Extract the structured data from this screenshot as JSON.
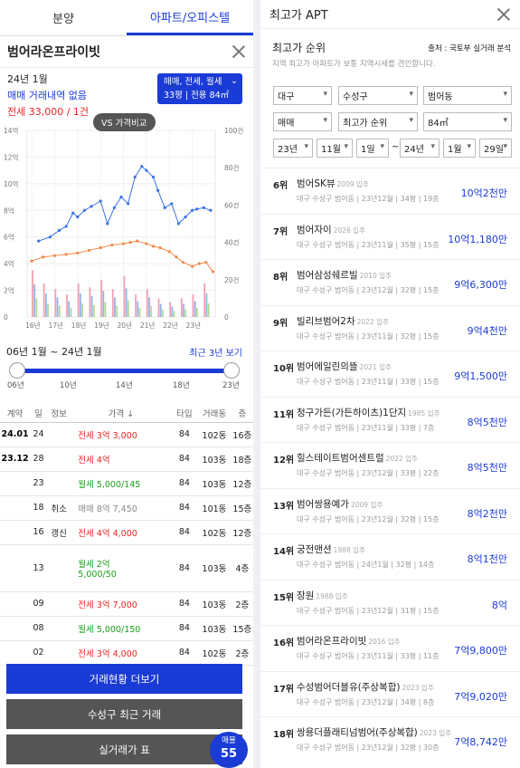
{
  "left": {
    "tabs": [
      {
        "label": "분양"
      },
      {
        "label": "아파트/오피스텔"
      }
    ],
    "title": "범어라온프라이빗",
    "info": {
      "month": "24년 1월",
      "sale": "매매 거래내역 없음",
      "jeonse": "전세 33,000 / 1건"
    },
    "badge": {
      "line1": "매매, 전세, 월세",
      "line2": "33평 | 전용 84㎡"
    },
    "vs_label": "VS 가격비교",
    "range": {
      "label": "06년 1월 ~ 24년 1월",
      "recent": "최근 3년 보기",
      "years": [
        "06년",
        "10년",
        "14년",
        "18년",
        "23년"
      ]
    },
    "table": {
      "headers": {
        "date": "계약",
        "day": "일",
        "info": "정보",
        "price": "가격 ↓",
        "type": "타입",
        "dong": "거래동",
        "floor": "층"
      },
      "rows": [
        {
          "date": "24.01",
          "day": "24",
          "info": "",
          "kind": "전세",
          "amount": "3억 3,000",
          "ptype": "jeon",
          "type": "84",
          "dong": "102동",
          "floor": "16층",
          "tall": false
        },
        {
          "date": "23.12",
          "day": "28",
          "info": "",
          "kind": "전세",
          "amount": "4억",
          "ptype": "jeon",
          "type": "84",
          "dong": "103동",
          "floor": "18층",
          "tall": false
        },
        {
          "date": "",
          "day": "23",
          "info": "",
          "kind": "월세",
          "amount": "5,000/145",
          "ptype": "wol",
          "type": "84",
          "dong": "103동",
          "floor": "12층",
          "tall": false
        },
        {
          "date": "",
          "day": "18",
          "info": "취소",
          "kind": "매매",
          "amount": "8억 7,450",
          "ptype": "mae",
          "type": "84",
          "dong": "101동",
          "floor": "15층",
          "tall": false
        },
        {
          "date": "",
          "day": "16",
          "info": "갱신",
          "kind": "전세",
          "amount": "4억 4,000",
          "ptype": "jeon",
          "type": "84",
          "dong": "102동",
          "floor": "12층",
          "tall": false
        },
        {
          "date": "",
          "day": "13",
          "info": "",
          "kind": "월세",
          "amount": "2억",
          "amount2": "5,000/50",
          "ptype": "wol",
          "type": "84",
          "dong": "103동",
          "floor": "4층",
          "tall": true
        },
        {
          "date": "",
          "day": "09",
          "info": "",
          "kind": "전세",
          "amount": "3억 7,000",
          "ptype": "jeon",
          "type": "84",
          "dong": "103동",
          "floor": "2층",
          "tall": false
        },
        {
          "date": "",
          "day": "08",
          "info": "",
          "kind": "월세",
          "amount": "5,000/150",
          "ptype": "wol",
          "type": "84",
          "dong": "103동",
          "floor": "15층",
          "tall": false
        },
        {
          "date": "",
          "day": "02",
          "info": "",
          "kind": "전세",
          "amount": "3억 4,000",
          "ptype": "jeon",
          "type": "84",
          "dong": "102동",
          "floor": "2층",
          "tall": false
        }
      ]
    },
    "buttons": {
      "status": "거래현황 더보기",
      "district": "수성구 최근 거래",
      "realprice": "실거래가 표"
    },
    "listing": {
      "label": "매물",
      "count": "55"
    }
  },
  "chart_data": {
    "type": "line",
    "x": [
      "16년",
      "17년",
      "18년",
      "19년",
      "20년",
      "21년",
      "22년",
      "23년"
    ],
    "y_left_label_ticks": [
      "0",
      "2억",
      "4억",
      "6억",
      "8억",
      "10억",
      "12억",
      "14억"
    ],
    "y_right_ticks": [
      "0",
      "20건",
      "40건",
      "60건",
      "80건",
      "100건"
    ],
    "ylim": [
      0,
      14
    ],
    "ylim_right": [
      0,
      100
    ],
    "series": [
      {
        "color": "#3a73e0",
        "x": [
          16.3,
          16.8,
          17.2,
          17.5,
          17.8,
          18.0,
          18.3,
          18.6,
          19.0,
          19.3,
          19.6,
          19.9,
          20.2,
          20.5,
          20.8,
          21.0,
          21.3,
          21.5,
          21.8,
          22.1,
          22.4,
          22.7,
          23.0,
          23.2,
          23.5,
          23.8
        ],
        "values": [
          5.7,
          6.0,
          6.5,
          6.8,
          7.8,
          7.5,
          8.0,
          8.3,
          8.7,
          7.0,
          8.2,
          9.0,
          8.5,
          10.5,
          11.3,
          11.0,
          10.5,
          9.5,
          8.2,
          8.5,
          7.0,
          7.5,
          8.0,
          8.1,
          8.2,
          8.0
        ]
      },
      {
        "color": "#f08a4b",
        "x": [
          16.0,
          16.5,
          17.0,
          17.5,
          18.0,
          18.5,
          19.0,
          19.5,
          20.0,
          20.3,
          20.6,
          21.0,
          21.3,
          21.6,
          22.0,
          22.3,
          22.6,
          23.0,
          23.3,
          23.6,
          23.9
        ],
        "values": [
          4.2,
          4.5,
          4.6,
          4.7,
          4.8,
          5.0,
          5.2,
          5.4,
          5.5,
          5.6,
          5.7,
          5.5,
          5.3,
          5.2,
          4.9,
          4.5,
          4.1,
          3.8,
          4.0,
          4.1,
          3.4
        ]
      }
    ],
    "volume": {
      "x": [
        16.0,
        16.5,
        17.0,
        17.5,
        18.0,
        18.5,
        19.0,
        19.5,
        20.0,
        20.5,
        21.0,
        21.5,
        22.0,
        22.5,
        23.0,
        23.5
      ],
      "values": [
        25,
        18,
        15,
        12,
        18,
        16,
        20,
        15,
        22,
        12,
        15,
        10,
        8,
        10,
        12,
        18
      ]
    }
  },
  "right": {
    "title": "최고가 APT",
    "sub_title": "최고가 순위",
    "source": "출처 : 국토부 실거래 분석",
    "desc": "지역 최고가 아파트가 보통 지역시세를 견인합니다.",
    "filters": {
      "region": "대구",
      "district": "수성구",
      "dong": "범어동",
      "trade": "매매",
      "order": "최고가 순위",
      "area": "84㎡",
      "y1": "23년",
      "m1": "11월",
      "d1": "1일",
      "tilde": "~",
      "y2": "24년",
      "m2": "1월",
      "d2": "29일"
    },
    "ranks": [
      {
        "rank": "6위",
        "name": "범어SK뷰",
        "year": "2009 입주",
        "detail": "대구 수성구 범어동 | 23년12월 | 34평 | 19층",
        "price": "10억2천만"
      },
      {
        "rank": "7위",
        "name": "범어자이",
        "year": "2026 입주",
        "detail": "대구 수성구 범어동 | 23년11월 | 35평 | 15층",
        "price": "10억1,180만"
      },
      {
        "rank": "8위",
        "name": "범어삼성쉐르빌",
        "year": "2010 입주",
        "detail": "대구 수성구 범어동 | 23년12월 | 32평 | 15층",
        "price": "9억6,300만"
      },
      {
        "rank": "9위",
        "name": "빌리브범어2차",
        "year": "2022 입주",
        "detail": "대구 수성구 범어동 | 23년11월 | 32평 | 15층",
        "price": "9억4천만"
      },
      {
        "rank": "10위",
        "name": "범어에일린의뜰",
        "year": "2021 입주",
        "detail": "대구 수성구 범어동 | 23년11월 | 33평 | 15층",
        "price": "9억1,500만"
      },
      {
        "rank": "11위",
        "name": "청구가든(가든하이츠)1단지",
        "year": "1985 입주",
        "detail": "대구 수성구 범어동 | 23년11월 | 33평 | 7층",
        "price": "8억5천만"
      },
      {
        "rank": "12위",
        "name": "힐스테이트범어센트럴",
        "year": "2022 입주",
        "detail": "대구 수성구 범어동 | 23년12월 | 33평 | 22층",
        "price": "8억5천만"
      },
      {
        "rank": "13위",
        "name": "범어쌍용예가",
        "year": "2009 입주",
        "detail": "대구 수성구 범어동 | 23년12월 | 32평 | 15층",
        "price": "8억2천만"
      },
      {
        "rank": "14위",
        "name": "궁전맨션",
        "year": "1988 입주",
        "detail": "대구 수성구 범어동 | 24년1월 | 32평 | 14층",
        "price": "8억1천만"
      },
      {
        "rank": "15위",
        "name": "장원",
        "year": "1988 입주",
        "detail": "대구 수성구 범어동 | 23년12월 | 31평 | 15층",
        "price": "8억"
      },
      {
        "rank": "16위",
        "name": "범어라온프라이빗",
        "year": "2016 입주",
        "detail": "대구 수성구 범어동 | 23년11월 | 33평 | 11층",
        "price": "7억9,800만"
      },
      {
        "rank": "17위",
        "name": "수성범어더블유(주상복합)",
        "year": "2023 입주",
        "detail": "대구 수성구 범어동 | 23년12월 | 34평 | 8층",
        "price": "7억9,020만"
      },
      {
        "rank": "18위",
        "name": "쌍용더플래티넘범어(주상복합)",
        "year": "2023 입주",
        "detail": "대구 수성구 범어동 | 23년12월 | 32평 | 30층",
        "price": "7억8,742만"
      }
    ]
  }
}
